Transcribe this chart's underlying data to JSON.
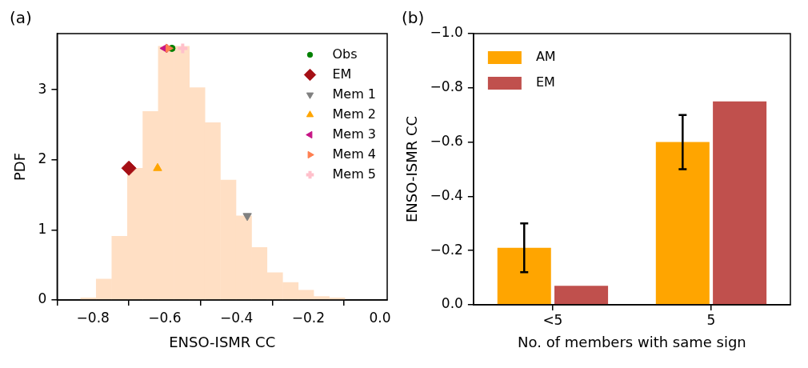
{
  "chart_data": [
    {
      "type": "histogram",
      "title": "(a)",
      "xlabel": "ENSO-ISMR CC",
      "ylabel": "PDF",
      "color": "#ffdfc4",
      "legend": "top right",
      "bins": [
        -0.835,
        -0.791,
        -0.748,
        -0.704,
        -0.661,
        -0.618,
        -0.575,
        -0.531,
        -0.488,
        -0.445,
        -0.401,
        -0.358,
        -0.315,
        -0.271,
        -0.228,
        -0.185,
        -0.141,
        -0.098
      ],
      "values": [
        0.03,
        0.3,
        0.91,
        1.88,
        2.69,
        3.62,
        3.62,
        3.03,
        2.53,
        1.71,
        1.2,
        0.75,
        0.39,
        0.25,
        0.14,
        0.05,
        0.03
      ],
      "xlim": [
        -0.9,
        0.02
      ],
      "xticks": [
        {
          "value": -0.8,
          "label": "−0.8"
        },
        {
          "value": -0.6,
          "label": "−0.6"
        },
        {
          "value": -0.4,
          "label": "−0.4"
        },
        {
          "value": -0.2,
          "label": "−0.2"
        },
        {
          "value": 0,
          "label": "0.0"
        }
      ],
      "ylim": [
        0,
        3.8
      ],
      "yticks": [
        0,
        1,
        2,
        3
      ],
      "series": [
        {
          "name": "Obs",
          "type": "scatter",
          "marker": "circle",
          "color": "#008000",
          "x": [
            -0.58
          ],
          "values": [
            3.59
          ]
        },
        {
          "name": "EM",
          "type": "scatter",
          "marker": "diamond",
          "color": "#a50f15",
          "x": [
            -0.7
          ],
          "values": [
            1.88
          ]
        },
        {
          "name": "Mem 1",
          "type": "scatter",
          "marker": "triangle",
          "color": "#808080",
          "x": [
            -0.37
          ],
          "values": [
            1.2
          ]
        },
        {
          "name": "Mem 2",
          "type": "scatter",
          "marker": "triangle",
          "color": "#ffa500",
          "x": [
            -0.62
          ],
          "values": [
            1.88
          ]
        },
        {
          "name": "Mem 3",
          "type": "scatter",
          "marker": "triangle",
          "color": "#c71585",
          "x": [
            -0.6
          ],
          "values": [
            3.59
          ]
        },
        {
          "name": "Mem 4",
          "type": "scatter",
          "marker": "triangle",
          "color": "#ff7f50",
          "x": [
            -0.59
          ],
          "values": [
            3.59
          ]
        },
        {
          "name": "Mem 5",
          "type": "scatter",
          "marker": "cross",
          "color": "#ffc0cb",
          "x": [
            -0.55
          ],
          "values": [
            3.59
          ]
        }
      ]
    },
    {
      "type": "bar",
      "title": "(b)",
      "xlabel": "No. of members with same sign",
      "ylabel": "ENSO-ISMR CC",
      "legend": "top left",
      "categories": [
        "<5",
        "5"
      ],
      "ylim": [
        0,
        -1.0
      ],
      "yticks": [
        {
          "value": 0,
          "label": "0.0"
        },
        {
          "value": -0.2,
          "label": "−0.2"
        },
        {
          "value": -0.4,
          "label": "−0.4"
        },
        {
          "value": -0.6,
          "label": "−0.6"
        },
        {
          "value": -0.8,
          "label": "−0.8"
        },
        {
          "value": -1.0,
          "label": "−1.0"
        }
      ],
      "series": [
        {
          "name": "AM",
          "color": "#ffa500",
          "values": [
            -0.21,
            -0.6
          ],
          "errors": [
            0.09,
            0.1
          ]
        },
        {
          "name": "EM",
          "color": "#c0504d",
          "values": [
            -0.07,
            -0.75
          ]
        }
      ]
    }
  ]
}
